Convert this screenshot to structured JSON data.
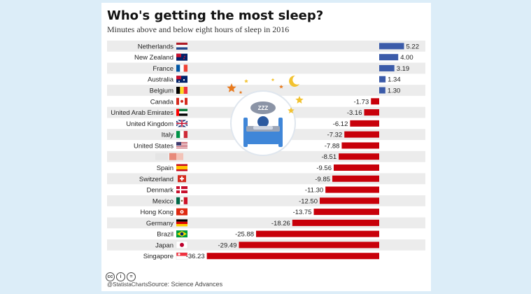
{
  "header": {
    "title": "Who's getting the most sleep?",
    "subtitle": "Minutes above and below eight hours of sleep in 2016"
  },
  "footer": {
    "handle": "@StatistaCharts",
    "source": "Source: Science Advances",
    "license_icons": [
      "cc",
      "i",
      "="
    ]
  },
  "colors": {
    "positive": "#3b5ba9",
    "negative": "#c8000a",
    "row_stripe": "#ececec",
    "illustration_blue": "#3f86d8"
  },
  "illustration": {
    "icon": "sleeping-person-in-bed-icon",
    "text": "ZZZ"
  },
  "chart_data": {
    "type": "bar",
    "orientation": "horizontal",
    "title": "Who's getting the most sleep?",
    "subtitle": "Minutes above and below eight hours of sleep in 2016",
    "categories": [
      "Netherlands",
      "New Zealand",
      "France",
      "Australia",
      "Belgium",
      "Canada",
      "United Arab Emirates",
      "United Kingdom",
      "Italy",
      "United States",
      "",
      "Spain",
      "Switzerland",
      "Denmark",
      "Mexico",
      "Hong Kong",
      "Germany",
      "Brazil",
      "Japan",
      "Singapore"
    ],
    "values": [
      5.22,
      4.0,
      3.19,
      1.34,
      1.3,
      -1.73,
      -3.16,
      -6.12,
      -7.32,
      -7.88,
      -8.51,
      -9.56,
      -9.85,
      -11.3,
      -12.5,
      -13.75,
      -18.26,
      -25.88,
      -29.49,
      -36.23
    ],
    "value_labels": [
      "5.22",
      "4.00",
      "3.19",
      "1.34",
      "1.30",
      "-1.73",
      "-3.16",
      "-6.12",
      "-7.32",
      "-7.88",
      "-8.51",
      "-9.56",
      "-9.85",
      "-11.30",
      "-12.50",
      "-13.75",
      "-18.26",
      "-25.88",
      "-29.49",
      "-36.23"
    ],
    "flags": [
      "netherlands-flag-icon",
      "new-zealand-flag-icon",
      "france-flag-icon",
      "australia-flag-icon",
      "belgium-flag-icon",
      "canada-flag-icon",
      "uae-flag-icon",
      "uk-flag-icon",
      "italy-flag-icon",
      "usa-flag-icon",
      "blurred-flag-icon",
      "spain-flag-icon",
      "switzerland-flag-icon",
      "denmark-flag-icon",
      "mexico-flag-icon",
      "hong-kong-flag-icon",
      "germany-flag-icon",
      "brazil-flag-icon",
      "japan-flag-icon",
      "singapore-flag-icon"
    ],
    "xlim": [
      -36.23,
      5.22
    ],
    "grid": false,
    "legend": "none"
  }
}
